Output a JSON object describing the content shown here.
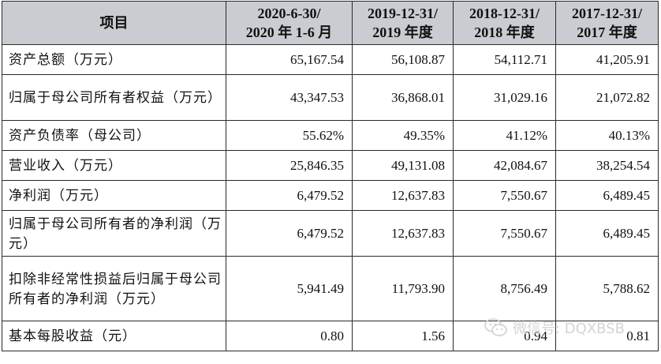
{
  "table": {
    "headers": [
      {
        "lines": [
          "项目"
        ]
      },
      {
        "lines": [
          "2020-6-30/",
          "2020 年 1-6 月"
        ]
      },
      {
        "lines": [
          "2019-12-31/",
          "2019 年度"
        ]
      },
      {
        "lines": [
          "2018-12-31/",
          "2018 年度"
        ]
      },
      {
        "lines": [
          "2017-12-31/",
          "2017 年度"
        ]
      }
    ],
    "rows": [
      {
        "label": "资产总额（万元）",
        "values": [
          "65,167.54",
          "56,108.87",
          "54,112.71",
          "41,205.91"
        ]
      },
      {
        "label": "归属于母公司所有者权益（万元）",
        "values": [
          "43,347.53",
          "36,868.01",
          "31,029.16",
          "21,072.82"
        ]
      },
      {
        "label": "资产负债率（母公司）",
        "values": [
          "55.62%",
          "49.35%",
          "41.12%",
          "40.13%"
        ]
      },
      {
        "label": "营业收入（万元）",
        "values": [
          "25,846.35",
          "49,131.08",
          "42,084.67",
          "38,254.54"
        ]
      },
      {
        "label": "净利润（万元）",
        "values": [
          "6,479.52",
          "12,637.83",
          "7,550.67",
          "6,489.45"
        ]
      },
      {
        "label": "归属于母公司所有者的净利润（万元）",
        "values": [
          "6,479.52",
          "12,637.83",
          "7,550.67",
          "6,489.45"
        ]
      },
      {
        "label": "扣除非经常性损益后归属于母公司所有者的净利润（万元）",
        "values": [
          "5,941.49",
          "11,793.90",
          "8,756.49",
          "5,788.62"
        ]
      },
      {
        "label": "基本每股收益（元）",
        "values": [
          "0.80",
          "1.56",
          "0.94",
          "0.81"
        ]
      }
    ]
  },
  "watermark": {
    "text": "微信号: DQXBSB",
    "icon": "wechat-icon"
  }
}
